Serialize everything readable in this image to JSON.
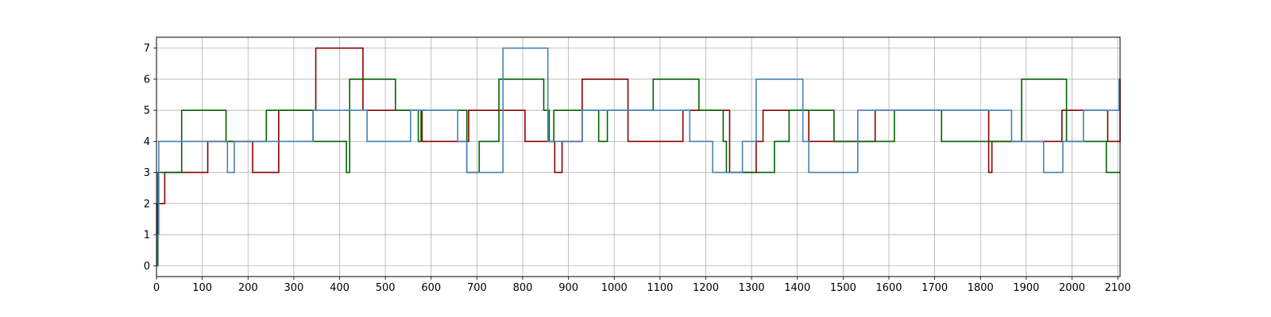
{
  "chart_data": {
    "type": "line",
    "step": true,
    "title": "",
    "xlabel": "",
    "ylabel": "",
    "xlim": [
      0,
      2105
    ],
    "ylim": [
      -0.35,
      7.35
    ],
    "xticks": [
      0,
      100,
      200,
      300,
      400,
      500,
      600,
      700,
      800,
      900,
      1000,
      1100,
      1200,
      1300,
      1400,
      1500,
      1600,
      1700,
      1800,
      1900,
      2000,
      2100
    ],
    "yticks": [
      0,
      1,
      2,
      3,
      4,
      5,
      6,
      7
    ],
    "grid": true,
    "legend": false,
    "series": [
      {
        "color": "#8b0000",
        "points": [
          [
            0,
            0
          ],
          [
            2,
            2
          ],
          [
            18,
            3
          ],
          [
            112,
            4
          ],
          [
            158,
            4
          ],
          [
            210,
            3
          ],
          [
            267,
            5
          ],
          [
            348,
            7
          ],
          [
            451,
            5
          ],
          [
            555,
            5
          ],
          [
            580,
            4
          ],
          [
            682,
            5
          ],
          [
            805,
            4
          ],
          [
            870,
            3
          ],
          [
            886,
            4
          ],
          [
            930,
            6
          ],
          [
            1030,
            4
          ],
          [
            1150,
            5
          ],
          [
            1252,
            3
          ],
          [
            1310,
            4
          ],
          [
            1325,
            5
          ],
          [
            1425,
            4
          ],
          [
            1570,
            5
          ],
          [
            1818,
            3
          ],
          [
            1825,
            4
          ],
          [
            1978,
            5
          ],
          [
            2025,
            5
          ],
          [
            2078,
            4
          ],
          [
            2105,
            6
          ]
        ]
      },
      {
        "color": "#006400",
        "points": [
          [
            0,
            0
          ],
          [
            3,
            3
          ],
          [
            55,
            5
          ],
          [
            152,
            4
          ],
          [
            240,
            5
          ],
          [
            342,
            4
          ],
          [
            415,
            3
          ],
          [
            422,
            6
          ],
          [
            522,
            5
          ],
          [
            572,
            4
          ],
          [
            578,
            5
          ],
          [
            678,
            3
          ],
          [
            705,
            4
          ],
          [
            748,
            6
          ],
          [
            846,
            5
          ],
          [
            858,
            4
          ],
          [
            868,
            5
          ],
          [
            966,
            4
          ],
          [
            985,
            5
          ],
          [
            1085,
            6
          ],
          [
            1185,
            5
          ],
          [
            1238,
            4
          ],
          [
            1245,
            3
          ],
          [
            1350,
            4
          ],
          [
            1382,
            5
          ],
          [
            1480,
            4
          ],
          [
            1612,
            5
          ],
          [
            1715,
            4
          ],
          [
            1890,
            6
          ],
          [
            1988,
            4
          ],
          [
            2075,
            3
          ],
          [
            2105,
            3
          ]
        ]
      },
      {
        "color": "#4682b4",
        "points": [
          [
            0,
            0
          ],
          [
            1,
            1
          ],
          [
            5,
            4
          ],
          [
            155,
            3
          ],
          [
            170,
            4
          ],
          [
            342,
            5
          ],
          [
            460,
            4
          ],
          [
            555,
            5
          ],
          [
            658,
            4
          ],
          [
            678,
            3
          ],
          [
            757,
            7
          ],
          [
            855,
            4
          ],
          [
            930,
            5
          ],
          [
            1030,
            5
          ],
          [
            1165,
            4
          ],
          [
            1215,
            3
          ],
          [
            1280,
            4
          ],
          [
            1310,
            6
          ],
          [
            1412,
            4
          ],
          [
            1425,
            3
          ],
          [
            1532,
            5
          ],
          [
            1868,
            4
          ],
          [
            1938,
            3
          ],
          [
            1980,
            4
          ],
          [
            2025,
            5
          ],
          [
            2103,
            6
          ],
          [
            2105,
            6
          ]
        ]
      }
    ]
  }
}
